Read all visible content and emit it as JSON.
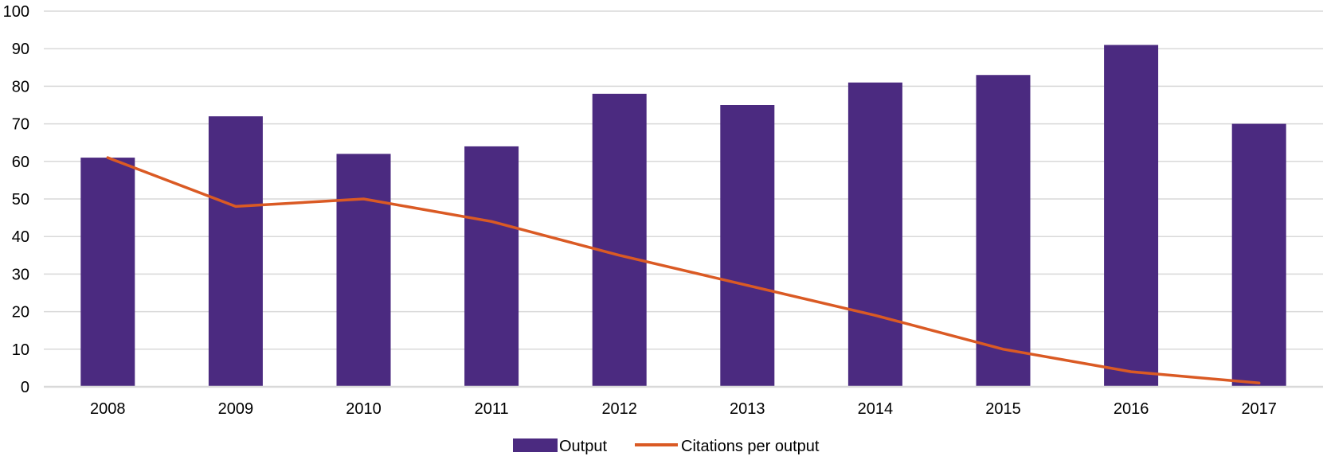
{
  "chart_data": {
    "type": "bar",
    "categories": [
      "2008",
      "2009",
      "2010",
      "2011",
      "2012",
      "2013",
      "2014",
      "2015",
      "2016",
      "2017"
    ],
    "series": [
      {
        "name": "Output",
        "kind": "bar",
        "color": "#4B2A80",
        "values": [
          61,
          72,
          62,
          64,
          78,
          75,
          81,
          83,
          91,
          70
        ]
      },
      {
        "name": "Citations per output",
        "kind": "line",
        "color": "#DA5A24",
        "values": [
          61,
          48,
          50,
          44,
          35,
          27,
          19,
          10,
          4,
          1
        ]
      }
    ],
    "title": "",
    "xlabel": "",
    "ylabel": "",
    "ylim": [
      0,
      100
    ],
    "yticks": [
      0,
      10,
      20,
      30,
      40,
      50,
      60,
      70,
      80,
      90,
      100
    ],
    "grid": true,
    "legend_position": "bottom-center",
    "gridline_color": "#D9D9D9"
  }
}
